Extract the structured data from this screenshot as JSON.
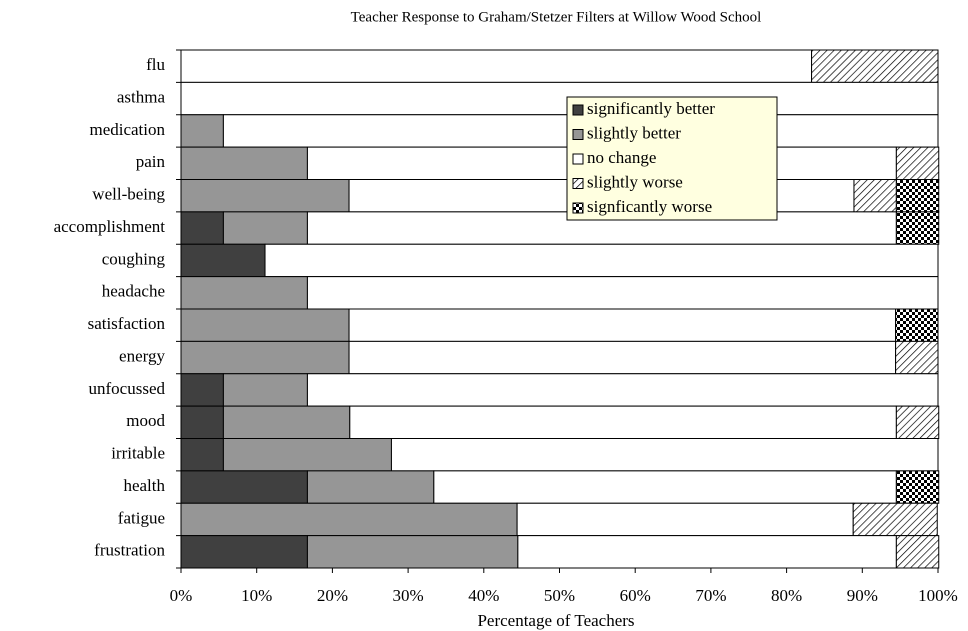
{
  "chart_data": {
    "type": "stacked-barh",
    "title": "Teacher Response to Graham/Stetzer Filters at Willow Wood School",
    "xlabel": "Percentage of Teachers",
    "categories": [
      "flu",
      "asthma",
      "medication",
      "pain",
      "well-being",
      "accomplishment",
      "coughing",
      "headache",
      "satisfaction",
      "energy",
      "unfocussed",
      "mood",
      "irritable",
      "health",
      "fatigue",
      "frustration"
    ],
    "series": [
      {
        "name": "significantly better",
        "color": "#404040",
        "values": [
          0,
          0,
          0,
          0,
          0,
          5.6,
          11.1,
          0,
          0,
          0,
          5.6,
          5.6,
          5.6,
          16.7,
          0,
          16.7
        ]
      },
      {
        "name": "slightly better",
        "color": "#969696",
        "values": [
          0,
          0,
          5.6,
          16.7,
          22.2,
          11.1,
          0,
          16.7,
          22.2,
          22.2,
          11.1,
          16.7,
          22.2,
          16.7,
          44.4,
          27.8
        ]
      },
      {
        "name": "no change",
        "color": "#ffffff",
        "values": [
          83.3,
          100,
          94.4,
          77.8,
          66.7,
          77.8,
          88.9,
          83.3,
          72.2,
          72.2,
          83.3,
          72.2,
          72.2,
          61.1,
          44.4,
          50
        ]
      },
      {
        "name": "slightly worse",
        "color": "#ffffff",
        "pattern": "diagonal",
        "values": [
          16.7,
          0,
          0,
          5.6,
          5.6,
          0,
          0,
          0,
          0,
          5.6,
          0,
          5.6,
          0,
          0,
          11.1,
          5.6
        ]
      },
      {
        "name": "signficantly worse",
        "color": "#ffffff",
        "pattern": "checker",
        "values": [
          0,
          0,
          0,
          0,
          5.6,
          5.6,
          0,
          0,
          5.6,
          0,
          0,
          0,
          0,
          5.6,
          0,
          0
        ]
      }
    ],
    "xlim": [
      0,
      100
    ],
    "xticks": [
      {
        "value": 0,
        "label": "0%"
      },
      {
        "value": 10,
        "label": "10%"
      },
      {
        "value": 20,
        "label": "20%"
      },
      {
        "value": 30,
        "label": "30%"
      },
      {
        "value": 40,
        "label": "40%"
      },
      {
        "value": 50,
        "label": "50%"
      },
      {
        "value": 60,
        "label": "60%"
      },
      {
        "value": 70,
        "label": "70%"
      },
      {
        "value": 80,
        "label": "80%"
      },
      {
        "value": 90,
        "label": "90%"
      },
      {
        "value": 100,
        "label": "100%"
      }
    ]
  }
}
